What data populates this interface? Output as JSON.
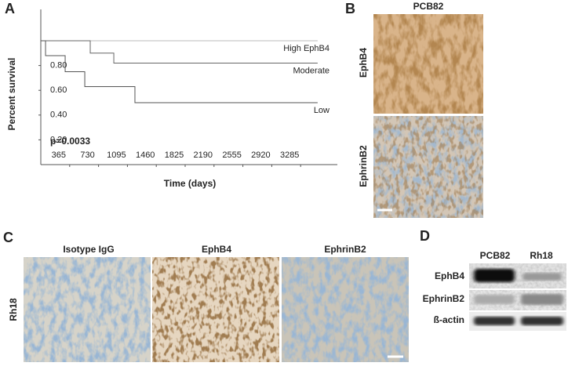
{
  "chart_data": {
    "type": "step",
    "panel": "A",
    "xlabel": "Time (days)",
    "ylabel": "Percent survival",
    "annotation": "p=0.0033",
    "xlim": [
      0,
      3650
    ],
    "ylim": [
      0,
      1.0
    ],
    "xticks": [
      365,
      730,
      1095,
      1460,
      1825,
      2190,
      2555,
      2920,
      3285
    ],
    "yticks": [
      {
        "value": 0.2,
        "label": "0.20"
      },
      {
        "value": 0.4,
        "label": "0.40"
      },
      {
        "value": 0.6,
        "label": "0.60"
      },
      {
        "value": 0.8,
        "label": "0.80"
      }
    ],
    "series": [
      {
        "name": "High EphB4",
        "color": "#bbbbbb",
        "x": [
          0,
          3500
        ],
        "values": [
          1.0,
          1.0
        ]
      },
      {
        "name": "Moderate",
        "color": "#666666",
        "x": [
          0,
          625,
          625,
          923,
          923,
          3500
        ],
        "values": [
          1.0,
          1.0,
          0.9,
          0.9,
          0.82,
          0.82
        ]
      },
      {
        "name": "Low",
        "color": "#555555",
        "x": [
          0,
          60,
          60,
          308,
          308,
          556,
          556,
          1190,
          1190,
          3500
        ],
        "values": [
          1.0,
          1.0,
          0.88,
          0.88,
          0.75,
          0.75,
          0.63,
          0.63,
          0.5,
          0.5
        ]
      }
    ]
  },
  "figure": {
    "B": {
      "label": "B",
      "title": "PCB82",
      "rows": [
        "EphB4",
        "EphrinB2"
      ]
    },
    "C": {
      "label": "C",
      "columns": [
        "Isotype IgG",
        "EphB4",
        "EphrinB2"
      ],
      "row": "Rh18"
    },
    "D": {
      "label": "D",
      "columns": [
        "PCB82",
        "Rh18"
      ],
      "rows": [
        "EphB4",
        "EphrinB2",
        "ß-actin"
      ]
    }
  }
}
